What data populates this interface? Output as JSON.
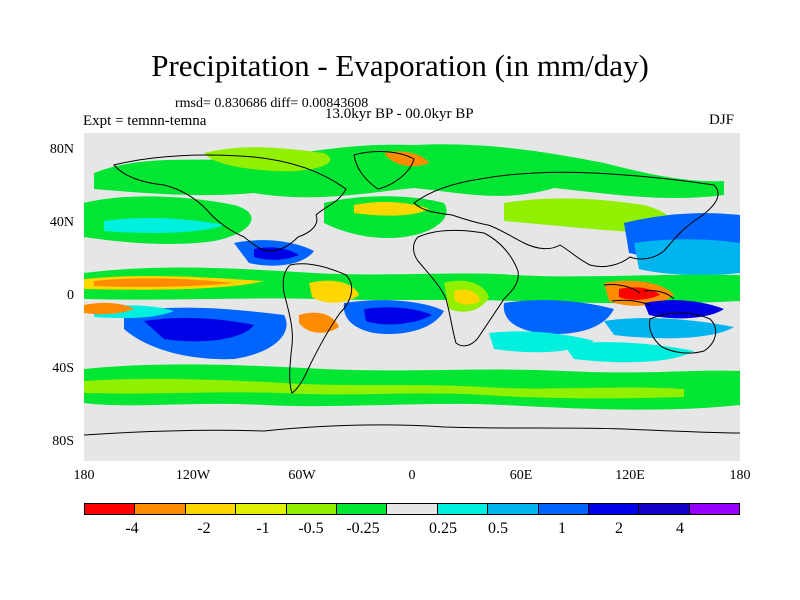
{
  "title": "Precipitation - Evaporation (in mm/day)",
  "stats": "rmsd= 0.830686  diff= 0.00843608",
  "experiment": "Expt = temnn-temna",
  "period": "13.0kyr BP - 00.0kyr BP",
  "season": "DJF",
  "map": {
    "lat_labels": [
      "80N",
      "40N",
      "0",
      "40S",
      "80S"
    ],
    "lon_labels": [
      "180",
      "120W",
      "60W",
      "0",
      "60E",
      "120E",
      "180"
    ],
    "background_color": "#e6e6e6"
  },
  "colorbar": {
    "colors": [
      "#ff0000",
      "#ff8c00",
      "#ffd700",
      "#e0f000",
      "#90f000",
      "#00e632",
      "#e6e6e6",
      "#00f0e0",
      "#00b4f0",
      "#0064ff",
      "#0000e6",
      "#1400c8",
      "#9600ff"
    ],
    "labels": [
      "-4",
      "-2",
      "-1",
      "-0.5",
      "-0.25",
      "0.25",
      "0.5",
      "1",
      "2",
      "4"
    ]
  },
  "colors": {
    "ocean_neutral": "#e6e6e6",
    "coast": "#000000"
  }
}
